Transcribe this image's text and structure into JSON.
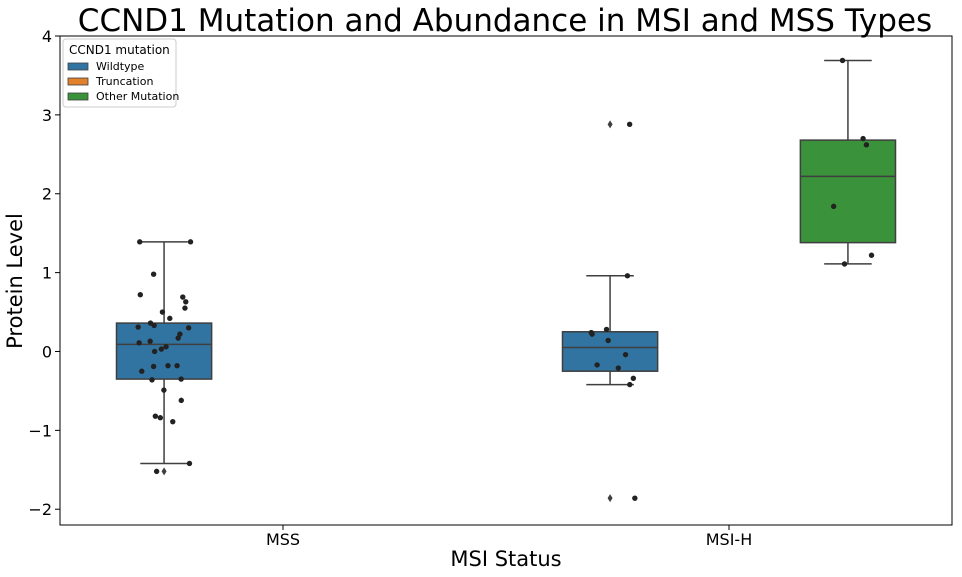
{
  "chart_data": {
    "type": "box",
    "title": "CCND1 Mutation and Abundance in MSI and MSS Types",
    "xlabel": "MSI Status",
    "ylabel": "Protein Level",
    "categories": [
      "MSS",
      "MSI-H"
    ],
    "ylim": [
      -2.2,
      4.0
    ],
    "yticks": [
      -2,
      -1,
      0,
      1,
      2,
      3,
      4
    ],
    "ytick_labels": [
      "−2",
      "−1",
      "0",
      "1",
      "2",
      "3",
      "4"
    ],
    "grid": false,
    "legend": {
      "title": "CCND1 mutation",
      "position": "top-left",
      "entries": [
        {
          "label": "Wildtype",
          "color": "#3274a1"
        },
        {
          "label": "Truncation",
          "color": "#e1812c"
        },
        {
          "label": "Other Mutation",
          "color": "#3a923a"
        }
      ]
    },
    "hue_order": [
      "Wildtype",
      "Truncation",
      "Other Mutation"
    ],
    "boxes": [
      {
        "category": "MSS",
        "hue": "Wildtype",
        "q1": -0.35,
        "median": 0.09,
        "q3": 0.36,
        "whisker_low": -1.42,
        "whisker_high": 1.39,
        "outliers": [
          -1.52
        ]
      },
      {
        "category": "MSI-H",
        "hue": "Wildtype",
        "q1": -0.25,
        "median": 0.05,
        "q3": 0.25,
        "whisker_low": -0.42,
        "whisker_high": 0.96,
        "outliers": [
          2.88,
          -1.86
        ]
      },
      {
        "category": "MSI-H",
        "hue": "Other Mutation",
        "q1": 1.38,
        "median": 2.22,
        "q3": 2.68,
        "whisker_low": 1.11,
        "whisker_high": 3.69,
        "outliers": []
      }
    ],
    "points": [
      {
        "category": "MSS",
        "hue": "Wildtype",
        "values": [
          1.39,
          1.39,
          0.98,
          0.72,
          0.69,
          0.63,
          0.55,
          0.5,
          0.42,
          0.36,
          0.33,
          0.31,
          0.3,
          0.22,
          0.17,
          0.13,
          0.11,
          0.06,
          0.03,
          0.0,
          -0.18,
          -0.18,
          -0.19,
          -0.25,
          -0.35,
          -0.36,
          -0.49,
          -0.62,
          -0.84,
          -0.82,
          -0.89,
          -1.42,
          -1.52
        ]
      },
      {
        "category": "MSI-H",
        "hue": "Wildtype",
        "values": [
          2.88,
          0.96,
          0.28,
          0.24,
          0.22,
          0.14,
          -0.04,
          -0.17,
          -0.21,
          -0.34,
          -0.42,
          -1.86
        ]
      },
      {
        "category": "MSI-H",
        "hue": "Other Mutation",
        "values": [
          3.69,
          2.7,
          2.62,
          1.84,
          1.22,
          1.11
        ]
      }
    ],
    "colors": {
      "axis": "#000000",
      "box_edge": "#3f3f3f",
      "point": "#222222"
    }
  }
}
